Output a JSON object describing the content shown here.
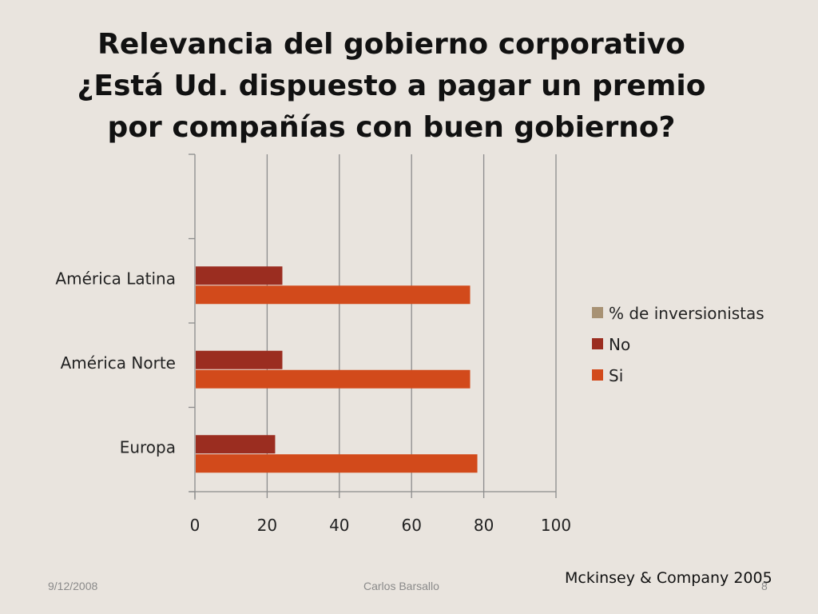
{
  "slide": {
    "title_lines": [
      "Relevancia del gobierno corporativo",
      "¿Está Ud. dispuesto a pagar un premio",
      "por compañías con buen gobierno?"
    ],
    "source": "Mckinsey & Company 2005",
    "footer": {
      "date": "9/12/2008",
      "author": "Carlos Barsallo",
      "page": "8"
    }
  },
  "chart_data": {
    "type": "bar",
    "orientation": "horizontal",
    "categories": [
      "Europa",
      "América Norte",
      "América Latina"
    ],
    "series": [
      {
        "name": "% de inversionistas",
        "values": [
          0,
          0,
          0
        ],
        "color": "#a89274"
      },
      {
        "name": "No",
        "values": [
          22,
          24,
          24
        ],
        "color": "#9b2d20"
      },
      {
        "name": "Si",
        "values": [
          78,
          76,
          76
        ],
        "color": "#d24a1b"
      }
    ],
    "xlim": [
      0,
      100
    ],
    "x_ticks": [
      0,
      20,
      40,
      60,
      80,
      100
    ],
    "grid": true,
    "legend_position": "right"
  }
}
